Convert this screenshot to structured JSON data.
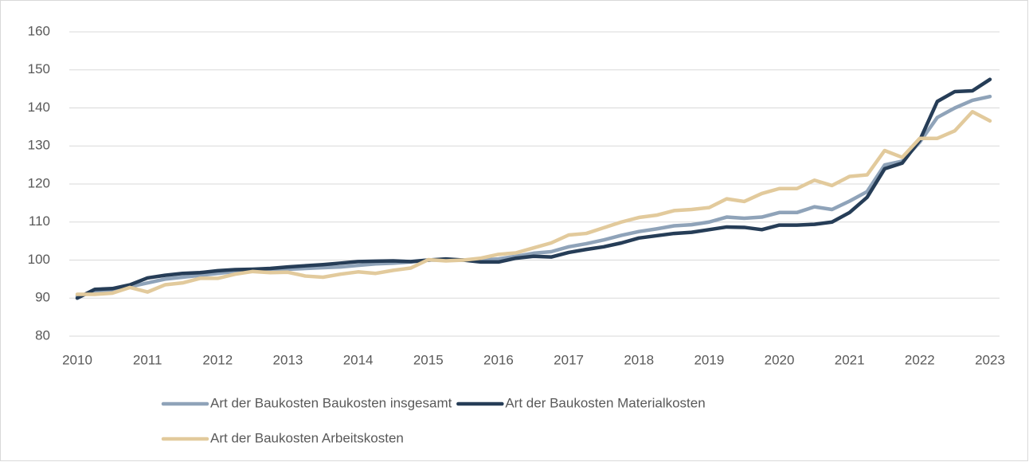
{
  "chart_data": {
    "type": "line",
    "categories": [
      "2010",
      null,
      null,
      null,
      "2011",
      null,
      null,
      null,
      "2012",
      null,
      null,
      null,
      "2013",
      null,
      null,
      null,
      "2014",
      null,
      null,
      null,
      "2015",
      null,
      null,
      null,
      "2016",
      null,
      null,
      null,
      "2017",
      null,
      null,
      null,
      "2018",
      null,
      null,
      null,
      "2019",
      null,
      null,
      null,
      "2020",
      null,
      null,
      null,
      "2021",
      null,
      null,
      null,
      "2022",
      null,
      null,
      null,
      "2023"
    ],
    "series": [
      {
        "name": "Art der Baukosten Baukosten insgesamt",
        "color": "#8fa3b9",
        "values": [
          90.5,
          91.5,
          92,
          93,
          94,
          95,
          95.5,
          96,
          96.5,
          97,
          97.3,
          97.5,
          97.6,
          97.8,
          98,
          98.2,
          98.6,
          99,
          99.2,
          99.5,
          100,
          100,
          100,
          100,
          100.3,
          101,
          101.8,
          102.2,
          103.5,
          104.3,
          105.3,
          106.5,
          107.5,
          108.2,
          109,
          109.3,
          110,
          111.3,
          111,
          111.3,
          112.5,
          112.5,
          114,
          113.3,
          115.5,
          118,
          125,
          126,
          131,
          137.5,
          140,
          142,
          143
        ]
      },
      {
        "name": "Art der Baukosten Materialkosten",
        "color": "#263d57",
        "values": [
          90,
          92.3,
          92.5,
          93.5,
          95.3,
          96,
          96.5,
          96.7,
          97.2,
          97.5,
          97.6,
          97.8,
          98.2,
          98.5,
          98.8,
          99.2,
          99.6,
          99.7,
          99.8,
          99.6,
          100,
          100.3,
          100,
          99.5,
          99.5,
          100.5,
          101,
          100.8,
          102,
          102.8,
          103.5,
          104.5,
          105.8,
          106.4,
          107,
          107.3,
          108,
          108.7,
          108.6,
          108,
          109.2,
          109.2,
          109.4,
          110,
          112.5,
          116.5,
          124,
          125.5,
          131.5,
          141.7,
          144.3,
          144.5,
          147.5
        ]
      },
      {
        "name": "Art der Baukosten Arbeitskosten",
        "color": "#e2ca9c",
        "values": [
          91,
          91,
          91.3,
          92.8,
          91.6,
          93.5,
          94,
          95.2,
          95.2,
          96.3,
          97,
          96.7,
          96.8,
          95.8,
          95.5,
          96.3,
          96.9,
          96.5,
          97.3,
          97.9,
          100.1,
          99.8,
          100,
          100.5,
          101.5,
          101.9,
          103.2,
          104.5,
          106.6,
          107,
          108.5,
          110,
          111.2,
          111.8,
          113,
          113.3,
          113.8,
          116.1,
          115.4,
          117.5,
          118.8,
          118.8,
          121,
          119.6,
          122,
          122.4,
          128.8,
          127,
          132,
          132,
          134,
          139,
          136.6
        ]
      }
    ],
    "ylim": [
      80,
      160
    ],
    "yticks": [
      80,
      90,
      100,
      110,
      120,
      130,
      140,
      150,
      160
    ],
    "grid": true
  }
}
